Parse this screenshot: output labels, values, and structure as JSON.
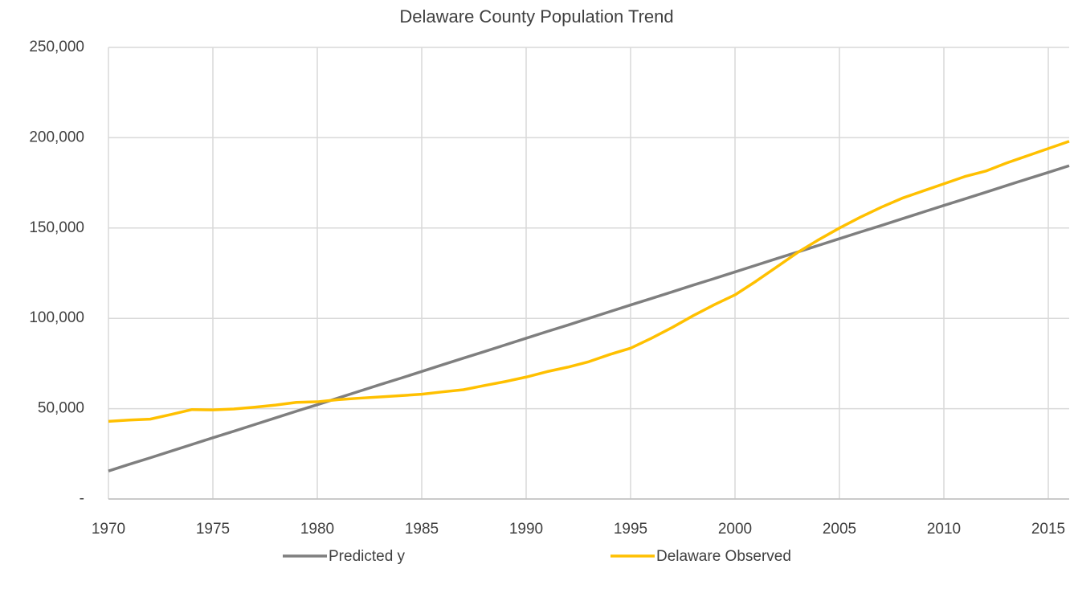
{
  "chart_data": {
    "type": "line",
    "title": "Delaware County Population Trend",
    "x": [
      1970,
      1971,
      1972,
      1973,
      1974,
      1975,
      1976,
      1977,
      1978,
      1979,
      1980,
      1981,
      1982,
      1983,
      1984,
      1985,
      1986,
      1987,
      1988,
      1989,
      1990,
      1991,
      1992,
      1993,
      1994,
      1995,
      1996,
      1997,
      1998,
      1999,
      2000,
      2001,
      2002,
      2003,
      2004,
      2005,
      2006,
      2007,
      2008,
      2009,
      2010,
      2011,
      2012,
      2013,
      2014,
      2015,
      2016
    ],
    "series": [
      {
        "name": "Predicted y",
        "color": "#7f7f7f",
        "values": [
          15500,
          19200,
          22800,
          26500,
          30200,
          33900,
          37500,
          41200,
          44900,
          48600,
          52200,
          55900,
          59600,
          63300,
          66900,
          70600,
          74300,
          78000,
          81600,
          85300,
          89000,
          92700,
          96300,
          100000,
          103700,
          107400,
          111000,
          114700,
          118400,
          122000,
          125700,
          129400,
          133100,
          136700,
          140400,
          144100,
          147800,
          151400,
          155100,
          158800,
          162500,
          166100,
          169800,
          173500,
          177200,
          180800,
          184500
        ]
      },
      {
        "name": "Delaware Observed",
        "color": "#ffc000",
        "values": [
          43000,
          43700,
          44200,
          46800,
          49500,
          49300,
          49800,
          50800,
          52000,
          53500,
          53800,
          55000,
          55800,
          56500,
          57200,
          58000,
          59300,
          60500,
          62800,
          65000,
          67500,
          70500,
          73000,
          76000,
          80000,
          83500,
          89000,
          95000,
          101500,
          107500,
          113000,
          120500,
          128500,
          136500,
          143500,
          150000,
          156000,
          161500,
          166500,
          170500,
          174500,
          178500,
          181500,
          186000,
          190000,
          194000,
          198000
        ]
      }
    ],
    "xlim": [
      1970,
      2016
    ],
    "xticks": [
      1970,
      1975,
      1980,
      1985,
      1990,
      1995,
      2000,
      2005,
      2010,
      2015
    ],
    "ylim": [
      0,
      250000
    ],
    "yticks": [
      {
        "value": 0,
        "label": "-"
      },
      {
        "value": 50000,
        "label": "50,000"
      },
      {
        "value": 100000,
        "label": "100,000"
      },
      {
        "value": 150000,
        "label": "150,000"
      },
      {
        "value": 200000,
        "label": "200,000"
      },
      {
        "value": 250000,
        "label": "250,000"
      }
    ],
    "grid": true,
    "legend": "bottom"
  }
}
